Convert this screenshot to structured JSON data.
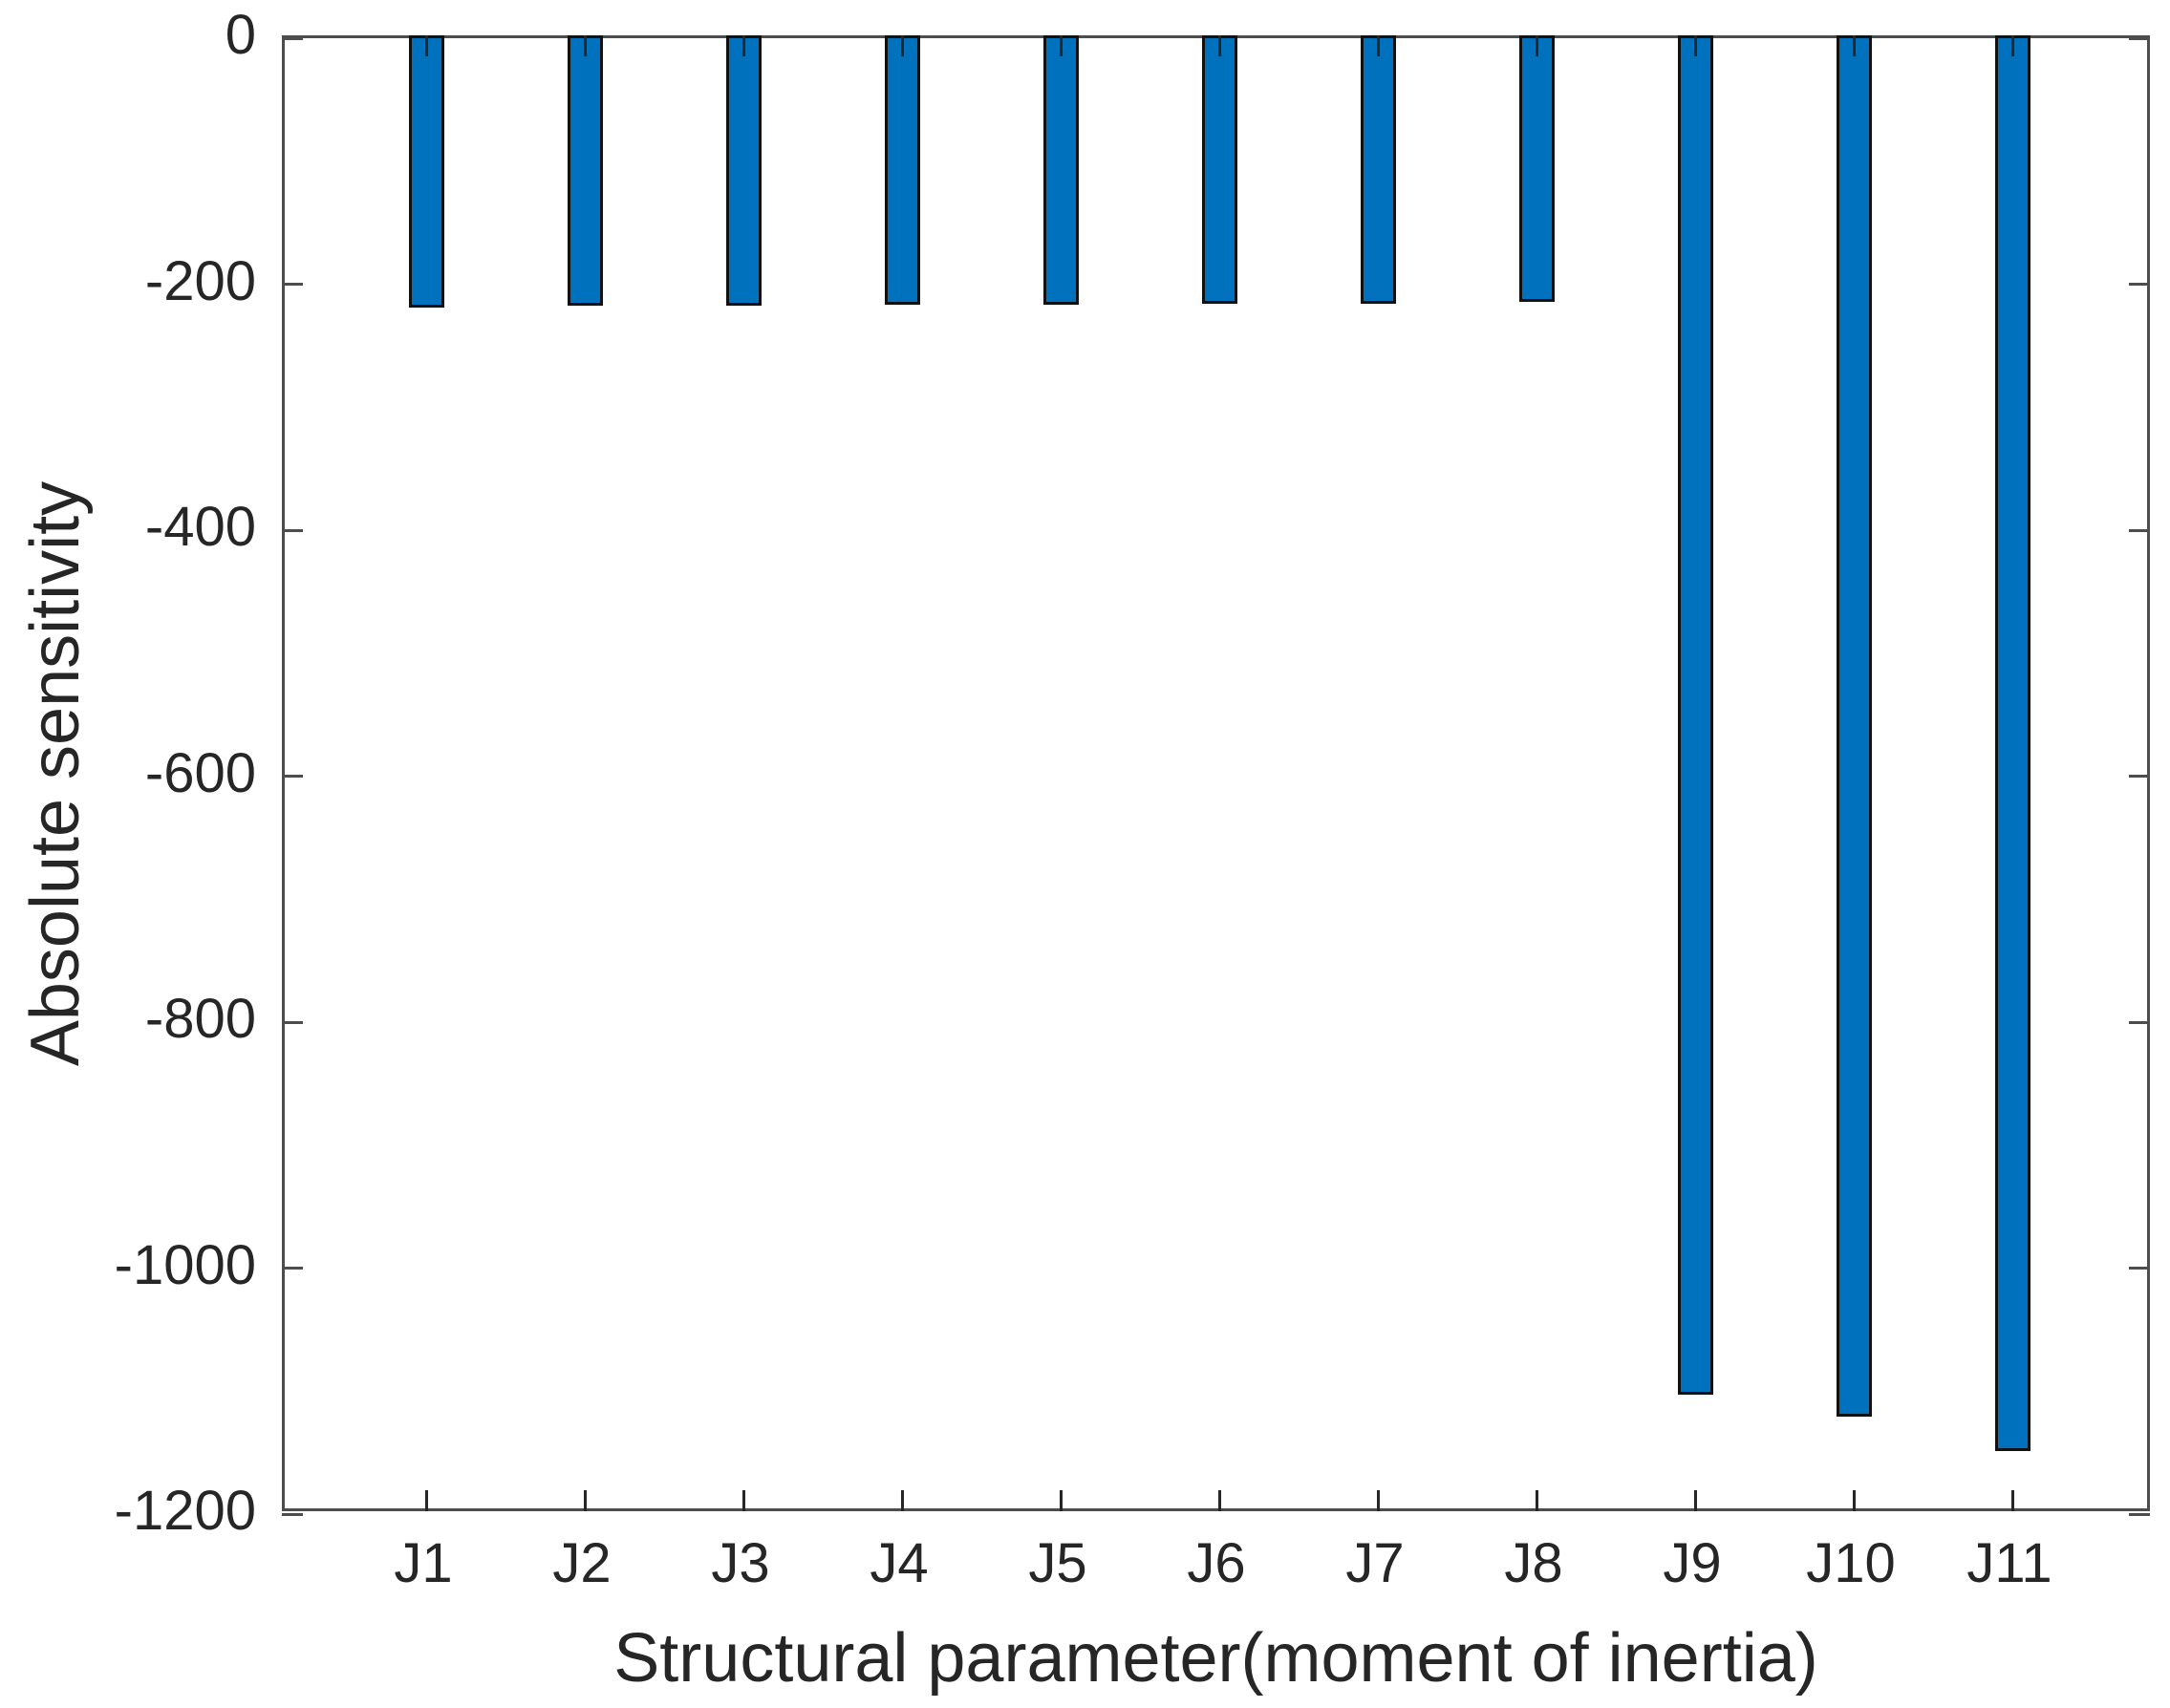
{
  "figure": {
    "background_color": "#ffffff",
    "text_color": "#262626",
    "axis_color": "#4d4d4d"
  },
  "chart_data": {
    "type": "bar",
    "orientation": "vertical",
    "title": "",
    "xlabel": "Structural parameter(moment of inertia)",
    "ylabel": "Absolute sensitivity",
    "categories": [
      "J1",
      "J2",
      "J3",
      "J4",
      "J5",
      "J6",
      "J7",
      "J8",
      "J9",
      "J10",
      "J11"
    ],
    "values": [
      -221,
      -220,
      -220,
      -219,
      -219,
      -218,
      -218,
      -217,
      -1105,
      -1123,
      -1151
    ],
    "ylim": [
      -1200,
      0
    ],
    "ytick_values": [
      0,
      -200,
      -400,
      -600,
      -800,
      -1000,
      -1200
    ],
    "ytick_labels": [
      "0",
      "-200",
      "-400",
      "-600",
      "-800",
      "-1000",
      "-1200"
    ],
    "grid": false,
    "legend": null,
    "box": true,
    "tick_direction": "in",
    "bar_fill_color": "#0072BD",
    "bar_edge_color": "#111111"
  }
}
